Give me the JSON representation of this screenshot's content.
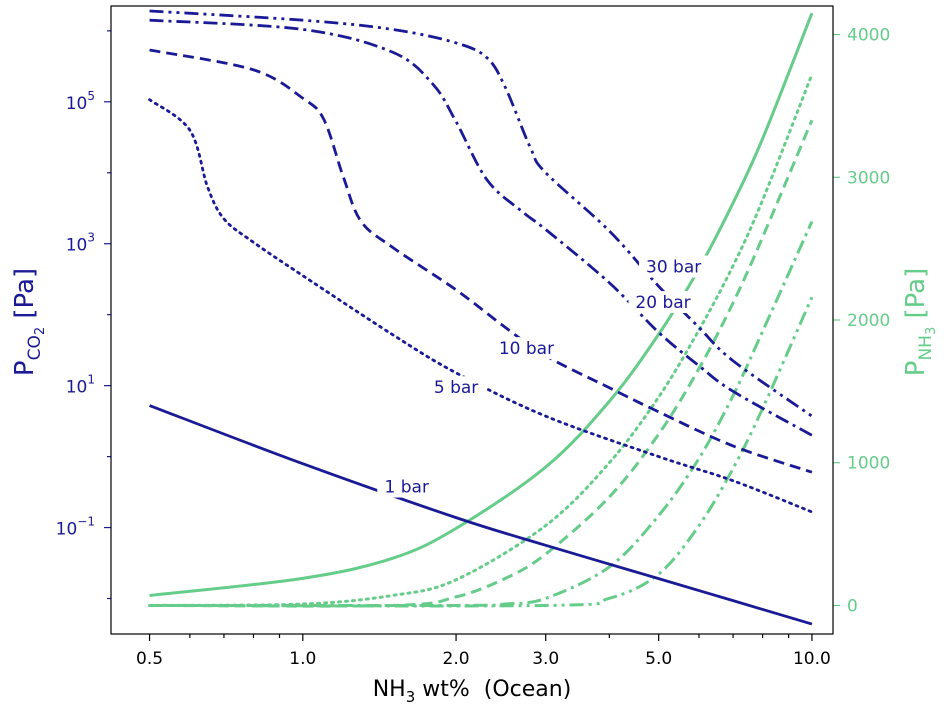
{
  "chart_data": {
    "type": "line",
    "xlabel": {
      "base": "NH",
      "sub": "3",
      "rest": " wt%  (Ocean)"
    },
    "ylabel_left": {
      "base": "P",
      "sub": "CO",
      "subsub": "2",
      "rest": " [Pa]"
    },
    "ylabel_right": {
      "base": "P",
      "sub": "NH",
      "subsub": "3",
      "rest": " [Pa]"
    },
    "x_scale": "log",
    "xlim": [
      0.42,
      11.0
    ],
    "y_left_scale": "log",
    "y_left_ylim_log10": [
      -2.5,
      6.35
    ],
    "y_right_ylim": [
      -200,
      4200
    ],
    "x_ticks": [
      {
        "value": 0.5,
        "label": "0.5"
      },
      {
        "value": 1.0,
        "label": "1.0"
      },
      {
        "value": 2.0,
        "label": "2.0"
      },
      {
        "value": 3.0,
        "label": "3.0"
      },
      {
        "value": 5.0,
        "label": "5.0"
      },
      {
        "value": 10.0,
        "label": "10.0"
      }
    ],
    "y_left_ticks": [
      {
        "log10": -1,
        "base": "10",
        "exp": "−1"
      },
      {
        "log10": 1,
        "base": "10",
        "exp": "1"
      },
      {
        "log10": 3,
        "base": "10",
        "exp": "3"
      },
      {
        "log10": 5,
        "base": "10",
        "exp": "5"
      }
    ],
    "y_right_ticks": [
      {
        "value": 0,
        "label": "0"
      },
      {
        "value": 1000,
        "label": "1000"
      },
      {
        "value": 2000,
        "label": "2000"
      },
      {
        "value": 3000,
        "label": "3000"
      },
      {
        "value": 4000,
        "label": "4000"
      }
    ],
    "colors": {
      "co2": "#1a1a96",
      "nh3": "#66cc8a"
    },
    "series_co2": [
      {
        "name": "1 bar",
        "dash": "solid",
        "points": [
          [
            0.5,
            0.72
          ],
          [
            1.0,
            -0.1
          ],
          [
            2.0,
            -0.86
          ],
          [
            3.0,
            -1.25
          ],
          [
            5.0,
            -1.72
          ],
          [
            7.0,
            -2.03
          ],
          [
            10.0,
            -2.36
          ]
        ]
      },
      {
        "name": "5 bar",
        "dash": "dotted",
        "points": [
          [
            0.5,
            5.03
          ],
          [
            0.6,
            4.6
          ],
          [
            0.65,
            3.8
          ],
          [
            0.7,
            3.35
          ],
          [
            0.8,
            3.02
          ],
          [
            1.0,
            2.55
          ],
          [
            1.5,
            1.72
          ],
          [
            2.0,
            1.18
          ],
          [
            3.0,
            0.57
          ],
          [
            5.0,
            0.0
          ],
          [
            7.0,
            -0.34
          ],
          [
            10.0,
            -0.78
          ]
        ]
      },
      {
        "name": "10 bar",
        "dash": "dashed",
        "points": [
          [
            0.5,
            5.73
          ],
          [
            0.8,
            5.45
          ],
          [
            1.0,
            5.05
          ],
          [
            1.1,
            4.75
          ],
          [
            1.2,
            3.95
          ],
          [
            1.3,
            3.32
          ],
          [
            1.5,
            2.95
          ],
          [
            2.0,
            2.35
          ],
          [
            2.5,
            1.82
          ],
          [
            3.0,
            1.42
          ],
          [
            4.0,
            0.97
          ],
          [
            5.0,
            0.63
          ],
          [
            7.0,
            0.15
          ],
          [
            10.0,
            -0.22
          ]
        ]
      },
      {
        "name": "20 bar",
        "dash": "dashdot",
        "points": [
          [
            0.5,
            6.15
          ],
          [
            1.0,
            6.02
          ],
          [
            1.5,
            5.7
          ],
          [
            1.8,
            5.25
          ],
          [
            2.0,
            4.72
          ],
          [
            2.3,
            3.9
          ],
          [
            2.7,
            3.45
          ],
          [
            3.0,
            3.2
          ],
          [
            4.0,
            2.45
          ],
          [
            5.0,
            1.75
          ],
          [
            6.0,
            1.28
          ],
          [
            7.0,
            0.92
          ],
          [
            10.0,
            0.3
          ]
        ]
      },
      {
        "name": "30 bar",
        "dash": "dashdotdot",
        "points": [
          [
            0.5,
            6.28
          ],
          [
            1.0,
            6.15
          ],
          [
            1.5,
            6.02
          ],
          [
            2.0,
            5.83
          ],
          [
            2.3,
            5.62
          ],
          [
            2.5,
            5.2
          ],
          [
            2.8,
            4.35
          ],
          [
            3.0,
            4.0
          ],
          [
            4.0,
            3.18
          ],
          [
            5.0,
            2.4
          ],
          [
            6.0,
            1.82
          ],
          [
            7.0,
            1.35
          ],
          [
            10.0,
            0.57
          ]
        ]
      }
    ],
    "series_nh3": [
      {
        "name": "1 bar",
        "dash": "solid",
        "points": [
          [
            0.5,
            70
          ],
          [
            1.0,
            190
          ],
          [
            1.5,
            330
          ],
          [
            2.0,
            540
          ],
          [
            3.0,
            970
          ],
          [
            4.0,
            1430
          ],
          [
            5.0,
            1900
          ],
          [
            6.0,
            2360
          ],
          [
            7.0,
            2820
          ],
          [
            8.0,
            3270
          ],
          [
            10.0,
            4150
          ]
        ]
      },
      {
        "name": "5 bar",
        "dash": "dotted",
        "points": [
          [
            0.5,
            0
          ],
          [
            1.0,
            10
          ],
          [
            1.5,
            70
          ],
          [
            2.0,
            180
          ],
          [
            3.0,
            560
          ],
          [
            4.0,
            1000
          ],
          [
            5.0,
            1460
          ],
          [
            6.0,
            1930
          ],
          [
            7.0,
            2380
          ],
          [
            8.0,
            2840
          ],
          [
            10.0,
            3720
          ]
        ]
      },
      {
        "name": "10 bar",
        "dash": "dashed",
        "points": [
          [
            0.5,
            0
          ],
          [
            1.5,
            0
          ],
          [
            2.0,
            60
          ],
          [
            2.5,
            190
          ],
          [
            3.0,
            360
          ],
          [
            4.0,
            760
          ],
          [
            5.0,
            1200
          ],
          [
            6.0,
            1660
          ],
          [
            7.0,
            2120
          ],
          [
            8.0,
            2580
          ],
          [
            10.0,
            3400
          ]
        ]
      },
      {
        "name": "20 bar",
        "dash": "dashdot",
        "points": [
          [
            0.5,
            0
          ],
          [
            2.0,
            0
          ],
          [
            2.5,
            10
          ],
          [
            3.0,
            50
          ],
          [
            4.0,
            270
          ],
          [
            5.0,
            630
          ],
          [
            6.0,
            1030
          ],
          [
            7.0,
            1470
          ],
          [
            8.0,
            1920
          ],
          [
            10.0,
            2690
          ]
        ]
      },
      {
        "name": "30 bar",
        "dash": "dashdotdot",
        "points": [
          [
            0.5,
            0
          ],
          [
            3.0,
            0
          ],
          [
            4.0,
            50
          ],
          [
            5.0,
            220
          ],
          [
            6.0,
            560
          ],
          [
            7.0,
            960
          ],
          [
            8.0,
            1380
          ],
          [
            10.0,
            2160
          ]
        ]
      }
    ],
    "annotations": [
      {
        "text": "1 bar",
        "x": 1.6,
        "log10y": -0.45
      },
      {
        "text": "5 bar",
        "x": 2.0,
        "log10y": 0.95
      },
      {
        "text": "10 bar",
        "x": 2.75,
        "log10y": 1.5
      },
      {
        "text": "20 bar",
        "x": 5.1,
        "log10y": 2.15
      },
      {
        "text": "30 bar",
        "x": 5.35,
        "log10y": 2.65
      }
    ]
  }
}
